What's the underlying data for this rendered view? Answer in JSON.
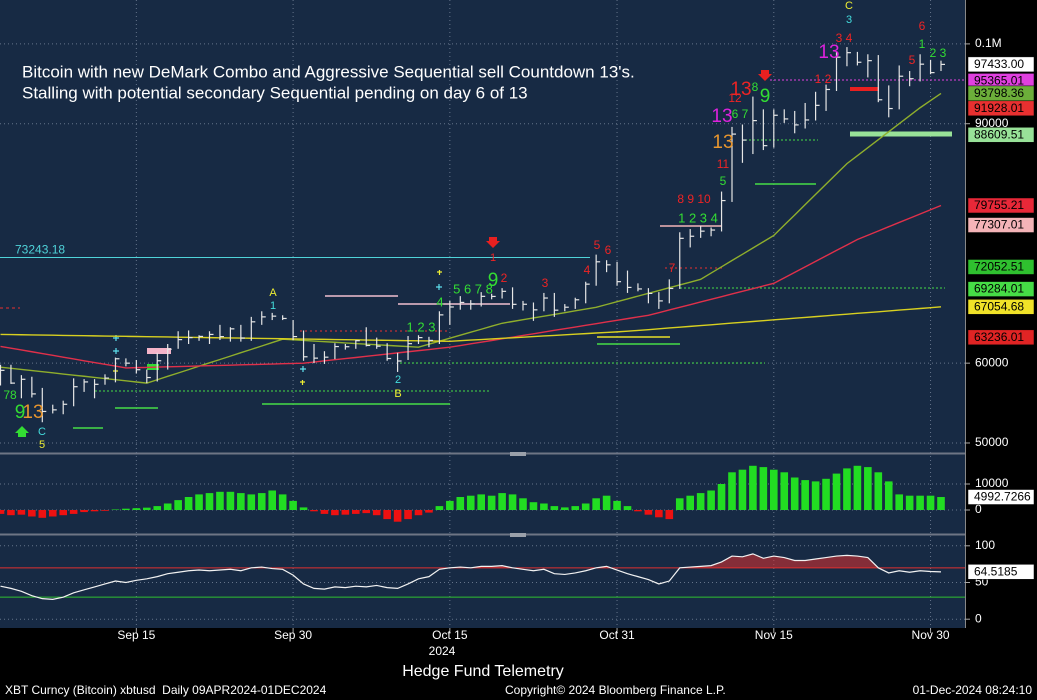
{
  "chart_data": [
    {
      "type": "ohlc",
      "title": "Bitcoin with new DeMark Combo and Aggressive Sequential sell Countdown 13's.",
      "subtitle": "Stalling with potential secondary Sequential pending on day 6 of 13",
      "categories": [
        null,
        null,
        null,
        null,
        null,
        null,
        null,
        null,
        null,
        null,
        null,
        null,
        null,
        "Sep 15",
        null,
        null,
        null,
        null,
        null,
        null,
        null,
        null,
        null,
        null,
        null,
        null,
        null,
        null,
        "Sep 30",
        null,
        null,
        null,
        null,
        null,
        null,
        null,
        null,
        null,
        null,
        null,
        null,
        null,
        null,
        "Oct 15",
        null,
        null,
        null,
        null,
        null,
        null,
        null,
        null,
        null,
        null,
        null,
        null,
        null,
        null,
        null,
        "Oct 31",
        null,
        null,
        null,
        null,
        null,
        null,
        null,
        null,
        null,
        null,
        null,
        null,
        null,
        null,
        "Nov 15",
        null,
        null,
        null,
        null,
        null,
        null,
        null,
        null,
        null,
        null,
        null,
        null,
        null,
        null,
        "Nov 30",
        null
      ],
      "high": [
        59800,
        59800,
        58500,
        58300,
        56900,
        54800,
        55300,
        58100,
        58000,
        58000,
        58600,
        60700,
        60600,
        60400,
        59200,
        61300,
        62400,
        64000,
        64100,
        63500,
        64000,
        64800,
        64500,
        64800,
        65800,
        66500,
        66300,
        66000,
        65400,
        64100,
        62400,
        61500,
        62500,
        62400,
        62900,
        64500,
        63200,
        62500,
        61300,
        63400,
        63500,
        63300,
        66500,
        67800,
        68400,
        67900,
        68900,
        68700,
        69400,
        69500,
        67800,
        67600,
        68800,
        68800,
        67400,
        68200,
        70200,
        73600,
        72900,
        72700,
        71600,
        70000,
        69400,
        68900,
        70500,
        76400,
        76800,
        77200,
        77000,
        81500,
        89600,
        89900,
        93400,
        91800,
        91800,
        91800,
        91600,
        92600,
        94000,
        94900,
        99000,
        99600,
        99000,
        98700,
        98600,
        94800,
        97300,
        96600,
        98700,
        98000,
        97900
      ],
      "low": [
        57200,
        57400,
        55600,
        55700,
        52600,
        53700,
        53600,
        54600,
        56400,
        55600,
        57300,
        57600,
        59600,
        58700,
        57500,
        57700,
        59200,
        61800,
        62400,
        62800,
        62400,
        62900,
        62700,
        62700,
        62800,
        64800,
        65400,
        65400,
        62900,
        60300,
        60000,
        59900,
        60500,
        61700,
        61800,
        62100,
        61800,
        60300,
        58900,
        60400,
        62400,
        62000,
        62400,
        64800,
        66700,
        66700,
        67100,
        68000,
        68100,
        66800,
        66600,
        65300,
        66500,
        65800,
        66500,
        66800,
        67500,
        69700,
        71400,
        69700,
        68800,
        69000,
        67500,
        66800,
        67500,
        69300,
        74500,
        75700,
        75900,
        76500,
        80200,
        85100,
        86200,
        86700,
        87000,
        90100,
        88800,
        89400,
        90400,
        91600,
        94100,
        97200,
        97300,
        95800,
        92700,
        90800,
        91800,
        94700,
        95300,
        96200,
        96600
      ],
      "close": [
        59100,
        57500,
        57980,
        56150,
        53950,
        54150,
        54850,
        57050,
        57650,
        57350,
        58130,
        60550,
        60000,
        59180,
        58200,
        60300,
        61750,
        62950,
        63200,
        63350,
        63600,
        63330,
        64300,
        63150,
        65180,
        65800,
        65890,
        65600,
        63330,
        60800,
        60630,
        60750,
        62080,
        62060,
        62820,
        62220,
        62130,
        60580,
        60270,
        62440,
        63200,
        62850,
        66050,
        67040,
        67610,
        67420,
        68370,
        68360,
        69000,
        67370,
        67380,
        66680,
        68160,
        66640,
        67010,
        67940,
        69900,
        72700,
        72320,
        70210,
        69490,
        69300,
        68740,
        67800,
        69360,
        75640,
        75900,
        76540,
        76680,
        80370,
        88700,
        87950,
        90390,
        87250,
        91060,
        90600,
        89850,
        90470,
        92300,
        94290,
        98340,
        98900,
        97700,
        97900,
        93000,
        91900,
        95950,
        95640,
        97460,
        96400,
        97433
      ],
      "bar_color": "#e6e6e6",
      "series": [
        {
          "color": "#8fae2c",
          "values": [
            59500,
            59360,
            59210,
            59070,
            58930,
            58790,
            58640,
            58500,
            58360,
            58210,
            58070,
            57930,
            57790,
            57640,
            57500,
            57920,
            58350,
            58770,
            59190,
            59620,
            60040,
            60460,
            60880,
            61310,
            61730,
            62150,
            62580,
            63000,
            62920,
            62850,
            62770,
            62690,
            62620,
            62540,
            62460,
            62380,
            62310,
            62230,
            62150,
            62080,
            62000,
            62380,
            62750,
            63130,
            63500,
            63880,
            64250,
            64630,
            65000,
            65220,
            65440,
            65670,
            65890,
            66110,
            66330,
            66560,
            66780,
            67000,
            67350,
            67700,
            68050,
            68400,
            68750,
            69100,
            69450,
            69800,
            70150,
            70500,
            71290,
            72070,
            72860,
            73640,
            74430,
            75210,
            76000,
            77290,
            78570,
            79860,
            81140,
            82430,
            83710,
            85000,
            86000,
            87000,
            88000,
            89000,
            90000,
            91000,
            92000,
            92900,
            93798.36
          ]
        },
        {
          "color": "#e0304a",
          "values": [
            62100,
            61880,
            61650,
            61430,
            61200,
            60980,
            60750,
            60530,
            60300,
            60080,
            59850,
            59630,
            59400,
            59440,
            59470,
            59510,
            59540,
            59580,
            59610,
            59650,
            59680,
            59720,
            59750,
            59790,
            59820,
            59860,
            59890,
            59930,
            59960,
            60000,
            60140,
            60290,
            60430,
            60570,
            60710,
            60860,
            61000,
            61140,
            61290,
            61430,
            61570,
            61710,
            61860,
            62000,
            62210,
            62420,
            62630,
            62840,
            63050,
            63260,
            63470,
            63680,
            63890,
            64110,
            64320,
            64530,
            64740,
            64950,
            65160,
            65370,
            65580,
            65790,
            66000,
            66330,
            66670,
            67000,
            67330,
            67670,
            68000,
            68330,
            68670,
            69000,
            69330,
            69670,
            70000,
            70690,
            71380,
            72060,
            72750,
            73440,
            74130,
            74810,
            75500,
            76030,
            76560,
            77100,
            77630,
            78160,
            78690,
            79220,
            79755.21
          ]
        },
        {
          "color": "#d8d020",
          "values": [
            63600,
            63580,
            63560,
            63540,
            63520,
            63500,
            63480,
            63460,
            63440,
            63420,
            63400,
            63380,
            63360,
            63340,
            63320,
            63300,
            63280,
            63260,
            63240,
            63220,
            63200,
            63180,
            63160,
            63140,
            63120,
            63100,
            63080,
            63060,
            63040,
            63020,
            63000,
            62980,
            62960,
            62940,
            62920,
            62900,
            62880,
            62860,
            62840,
            62820,
            62800,
            62780,
            62760,
            62740,
            62810,
            62890,
            62960,
            63040,
            63110,
            63180,
            63260,
            63330,
            63410,
            63480,
            63550,
            63630,
            63700,
            63780,
            63850,
            63920,
            64000,
            64100,
            64200,
            64310,
            64410,
            64510,
            64610,
            64710,
            64810,
            64920,
            65020,
            65120,
            65220,
            65320,
            65430,
            65530,
            65630,
            65730,
            65830,
            65930,
            66040,
            66140,
            66240,
            66340,
            66440,
            66540,
            66650,
            66750,
            66850,
            66950,
            67054.68
          ]
        }
      ],
      "ylim": [
        48870,
        105500
      ],
      "yticks": [
        50000,
        60000,
        90000,
        {
          "value": 100000,
          "label": "0.1M"
        }
      ],
      "grid": true,
      "level_lines": [
        {
          "value": 73243.18,
          "label": "73243.18",
          "color": "#4fd3d9"
        }
      ],
      "tags": [
        {
          "value": 95365.01,
          "label": "95365.01",
          "color": "#e040e0"
        },
        {
          "value": 97433.0,
          "label": "97433.00",
          "color": "#ffffff"
        },
        {
          "value": 93798.36,
          "label": "93798.36",
          "color": "#6cae3a"
        },
        {
          "value": 91928.01,
          "label": "91928.01",
          "color": "#e83030"
        },
        {
          "value": 88609.51,
          "label": "88609.51",
          "color": "#98e298"
        },
        {
          "value": 79755.21,
          "label": "79755.21",
          "color": "#e82838"
        },
        {
          "value": 77307.01,
          "label": "77307.01",
          "color": "#f4b4b8"
        },
        {
          "value": 72052.51,
          "label": "72052.51",
          "color": "#2fc02f"
        },
        {
          "value": 69284.01,
          "label": "69284.01",
          "color": "#46dc46"
        },
        {
          "value": 67054.68,
          "label": "67054.68",
          "color": "#f0e228"
        },
        {
          "value": 63236.01,
          "label": "63236.01",
          "color": "#e02424"
        }
      ],
      "annotations": [
        "78",
        "9",
        "13",
        "C",
        "5",
        "A",
        "1",
        "2",
        "B",
        "1 2 3",
        "4",
        "5 6 7 8",
        "9",
        "2",
        "1",
        "3",
        "4",
        "5",
        "6",
        "7",
        "8 9 10",
        "1 2 3 4",
        "5",
        "11",
        "13",
        "13",
        "6 7",
        "12",
        "13",
        "8",
        "9",
        "1 2",
        "13",
        "3 4",
        "C",
        "3",
        "6",
        "5",
        "1",
        "2 3"
      ]
    },
    {
      "type": "bar",
      "values": [
        -1500,
        -2000,
        -1800,
        -2500,
        -3000,
        -2500,
        -2000,
        -1500,
        -800,
        -500,
        -300,
        200,
        500,
        700,
        900,
        1500,
        2500,
        3800,
        5000,
        6000,
        6500,
        7000,
        7000,
        6500,
        6000,
        6500,
        7500,
        6000,
        3500,
        1000,
        -500,
        -1500,
        -2000,
        -1800,
        -1500,
        -1200,
        -2000,
        -3500,
        -4500,
        -3500,
        -2000,
        -1000,
        1500,
        3500,
        5000,
        5500,
        6000,
        5500,
        6500,
        6000,
        4500,
        3000,
        2500,
        1500,
        1000,
        1500,
        2500,
        4500,
        5500,
        3500,
        1500,
        -500,
        -1800,
        -2800,
        -3500,
        4500,
        5500,
        6500,
        7500,
        10000,
        14500,
        15500,
        17000,
        16500,
        15500,
        14500,
        12500,
        11500,
        11000,
        12000,
        14000,
        16000,
        17000,
        16500,
        14500,
        11000,
        6000,
        5500,
        5500,
        5500,
        4992.7266
      ],
      "pos_color": "#22dd22",
      "neg_color": "#ee1111",
      "ylim": [
        -8460,
        21150
      ],
      "yticks": [
        0,
        10000
      ],
      "grid": true,
      "tags": [
        {
          "value": 4992.7266,
          "label": "4992.7266",
          "color": "#ffffff"
        }
      ]
    },
    {
      "type": "line",
      "values": [
        45,
        42,
        38,
        32,
        28,
        27,
        30,
        36,
        40,
        44,
        48,
        52,
        50,
        53,
        55,
        58,
        62,
        64,
        66,
        67,
        66,
        67,
        68,
        66,
        70,
        71,
        69,
        68,
        60,
        48,
        42,
        41,
        44,
        43,
        45,
        44,
        46,
        43,
        42,
        48,
        55,
        58,
        68,
        70,
        71,
        70,
        72,
        72,
        73,
        70,
        68,
        66,
        68,
        62,
        61,
        63,
        66,
        70,
        72,
        67,
        62,
        58,
        54,
        48,
        52,
        70,
        71,
        72,
        73,
        78,
        86,
        85,
        89,
        83,
        86,
        84,
        80,
        80,
        82,
        84,
        86,
        87,
        86,
        84,
        70,
        63,
        66,
        64,
        66,
        65,
        64.5185
      ],
      "color": "#f2f2f2",
      "ylim": [
        -12,
        112
      ],
      "yticks": [
        0,
        50,
        100
      ],
      "grid": true,
      "ref_lines": [
        {
          "value": 70,
          "color": "#e03030",
          "shade_above": true
        },
        {
          "value": 30,
          "color": "#30c030"
        }
      ],
      "tags": [
        {
          "value": 64.5185,
          "label": "64.5185",
          "color": "#ffffff"
        }
      ]
    }
  ],
  "footer": {
    "year": "2024",
    "watermark": "Hedge Fund Telemetry",
    "security": "XBT Curncy (Bitcoin) xbtusd  Daily 09APR2024-01DEC2024",
    "copyright": "Copyright© 2024 Bloomberg Finance L.P.",
    "timestamp": "01-Dec-2024 08:24:10"
  }
}
